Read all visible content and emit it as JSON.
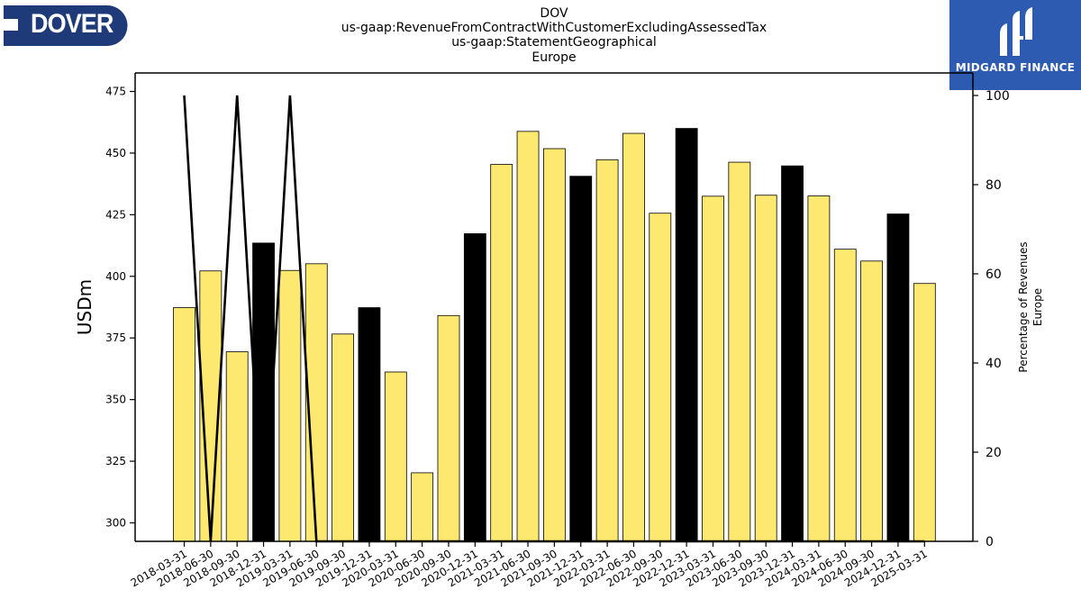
{
  "header": {
    "title_lines": [
      "DOV",
      "us-gaap:RevenueFromContractWithCustomerExcludingAssessedTax",
      "us-gaap:StatementGeographical",
      "Europe"
    ]
  },
  "logos": {
    "left_text": "DOVER",
    "right_text": "MIDGARD FINANCE"
  },
  "colors": {
    "bar_default": "#fde96f",
    "bar_highlight": "#000000",
    "line": "#000000",
    "logo_left_bg": "#1f3a78",
    "logo_right_bg": "#2d5bb1"
  },
  "chart_data": {
    "type": "bar",
    "ylabel": "USDm",
    "ylabel_right": [
      "Percentage of Revenues",
      "Europe"
    ],
    "ylim": [
      292.5,
      482.5
    ],
    "ylim_right": [
      0,
      100
    ],
    "yticks": [
      300,
      325,
      350,
      375,
      400,
      425,
      450,
      475
    ],
    "yticks_right": [
      0,
      20,
      40,
      60,
      80,
      100
    ],
    "categories": [
      "2018-03-31",
      "2018-06-30",
      "2018-09-30",
      "2018-12-31",
      "2019-03-31",
      "2019-06-30",
      "2019-09-30",
      "2019-12-31",
      "2020-03-31",
      "2020-06-30",
      "2020-09-30",
      "2020-12-31",
      "2021-03-31",
      "2021-06-30",
      "2021-09-30",
      "2021-12-31",
      "2022-03-31",
      "2022-06-30",
      "2022-09-30",
      "2022-12-31",
      "2023-03-31",
      "2023-06-30",
      "2023-09-30",
      "2023-12-31",
      "2024-03-31",
      "2024-06-30",
      "2024-09-30",
      "2024-12-31",
      "2025-03-31"
    ],
    "values": [
      387.3,
      402.2,
      369.4,
      413.5,
      402.4,
      405.1,
      376.6,
      387.3,
      361.2,
      320.3,
      384.1,
      417.3,
      445.4,
      458.8,
      451.8,
      440.6,
      447.3,
      458.0,
      425.6,
      460.0,
      432.5,
      446.3,
      432.9,
      444.8,
      432.6,
      411.0,
      406.2,
      425.3,
      397.1
    ],
    "highlight": [
      false,
      false,
      false,
      true,
      false,
      false,
      false,
      true,
      false,
      false,
      false,
      true,
      false,
      false,
      false,
      true,
      false,
      false,
      false,
      true,
      false,
      false,
      false,
      true,
      false,
      false,
      false,
      true,
      false
    ],
    "series": [
      {
        "values": [
          100,
          0,
          100,
          0,
          100,
          0,
          0,
          0,
          0,
          0,
          0,
          0,
          0,
          0,
          0,
          0,
          0,
          0,
          0,
          0,
          0,
          0,
          0,
          0,
          0,
          0,
          0,
          0,
          0
        ],
        "axis": "right"
      }
    ],
    "grid": false
  }
}
